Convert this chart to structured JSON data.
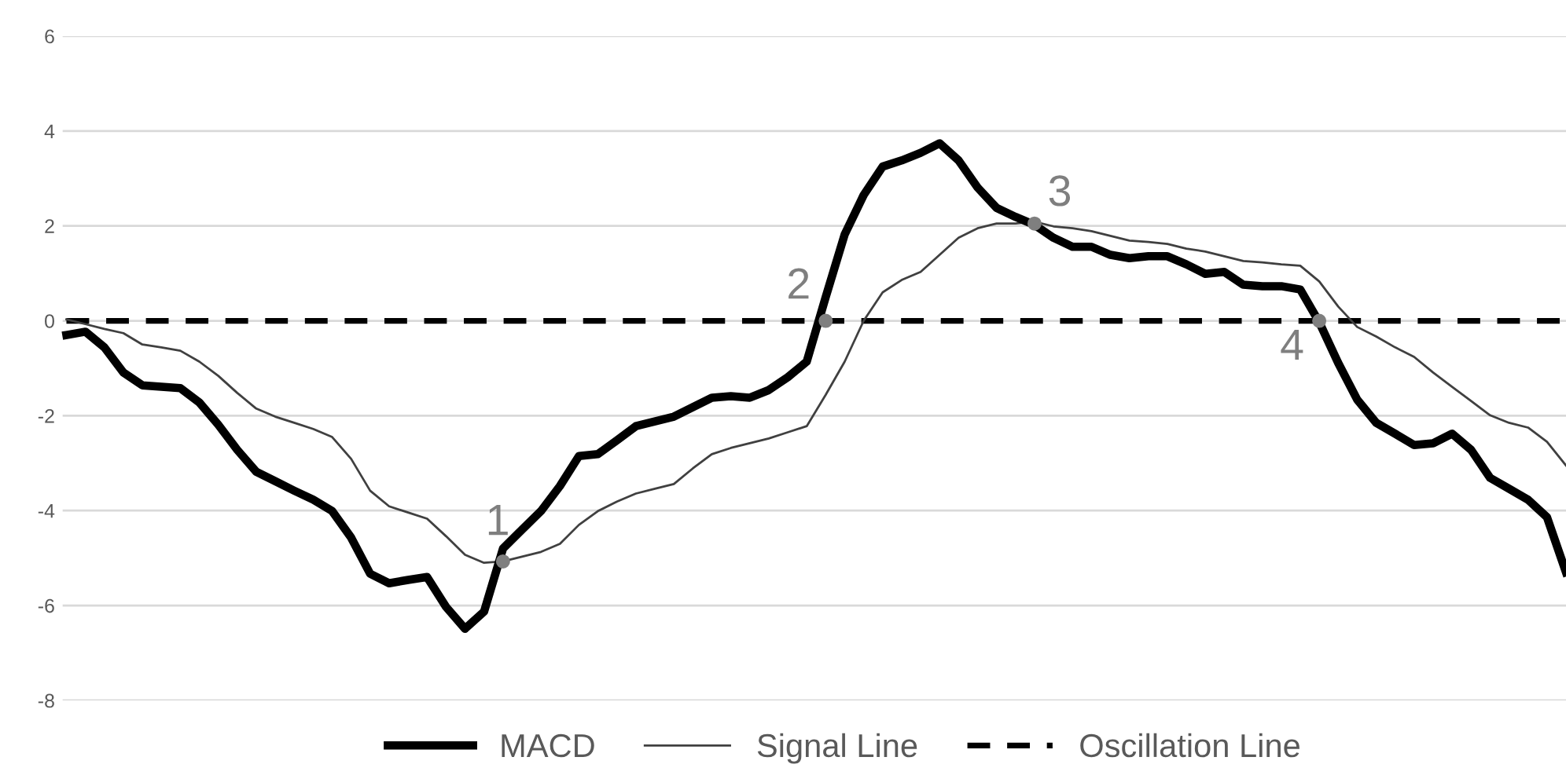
{
  "chart_data": {
    "type": "line",
    "categories": [
      null,
      null,
      null,
      null,
      null,
      null,
      null,
      null,
      null,
      null,
      null,
      null,
      null,
      null,
      null,
      null,
      null,
      null,
      null,
      null,
      null,
      null,
      null,
      null,
      null,
      null,
      null,
      null,
      null,
      null,
      null,
      null,
      null,
      null,
      null,
      null,
      null,
      null,
      null,
      null,
      null,
      null,
      null,
      null,
      null,
      null,
      null,
      null,
      null,
      null,
      null,
      null,
      null,
      null,
      null,
      null,
      null,
      null,
      null,
      null,
      null,
      null,
      null,
      null,
      null,
      null,
      null,
      null,
      null,
      null,
      null,
      null,
      null,
      null,
      null,
      null,
      null,
      null,
      null,
      null
    ],
    "series": [
      {
        "name": "MACD",
        "color": "#000000",
        "line_style": "solid",
        "values": [
          -0.3,
          -0.23,
          -0.56,
          -1.09,
          -1.36,
          -1.39,
          -1.42,
          -1.72,
          -2.19,
          -2.72,
          -3.18,
          -3.38,
          -3.58,
          -3.77,
          -4.01,
          -4.57,
          -5.33,
          -5.53,
          -5.46,
          -5.4,
          -6.03,
          -6.49,
          -6.13,
          -4.8,
          -4.4,
          -4.01,
          -3.48,
          -2.85,
          -2.81,
          -2.52,
          -2.22,
          -2.12,
          -2.02,
          -1.82,
          -1.62,
          -1.59,
          -1.62,
          -1.46,
          -1.19,
          -0.86,
          0.5,
          1.82,
          2.65,
          3.25,
          3.38,
          3.54,
          3.74,
          3.38,
          2.81,
          2.38,
          2.19,
          2.02,
          1.75,
          1.56,
          1.56,
          1.39,
          1.32,
          1.36,
          1.36,
          1.19,
          0.99,
          1.03,
          0.76,
          0.73,
          0.73,
          0.66,
          -0.03,
          -0.89,
          -1.66,
          -2.15,
          -2.38,
          -2.62,
          -2.58,
          -2.38,
          -2.72,
          -3.31,
          -3.54,
          -3.77,
          -4.14,
          -5.3
        ]
      },
      {
        "name": "Signal Line",
        "color": "#404040",
        "line_style": "solid",
        "values": [
          0.03,
          -0.07,
          -0.17,
          -0.26,
          -0.5,
          -0.56,
          -0.63,
          -0.86,
          -1.16,
          -1.52,
          -1.85,
          -2.02,
          -2.15,
          -2.28,
          -2.45,
          -2.91,
          -3.58,
          -3.91,
          -4.04,
          -4.17,
          -4.54,
          -4.93,
          -5.1,
          -5.07,
          -4.97,
          -4.87,
          -4.7,
          -4.3,
          -4.01,
          -3.81,
          -3.64,
          -3.54,
          -3.44,
          -3.11,
          -2.81,
          -2.68,
          -2.58,
          -2.48,
          -2.35,
          -2.22,
          -1.56,
          -0.86,
          0.0,
          0.6,
          0.86,
          1.03,
          1.39,
          1.75,
          1.95,
          2.05,
          2.05,
          2.09,
          1.99,
          1.95,
          1.89,
          1.79,
          1.69,
          1.66,
          1.62,
          1.52,
          1.46,
          1.36,
          1.26,
          1.23,
          1.19,
          1.16,
          0.83,
          0.3,
          -0.13,
          -0.33,
          -0.56,
          -0.76,
          -1.09,
          -1.39,
          -1.69,
          -1.99,
          -2.15,
          -2.25,
          -2.55,
          -3.05
        ]
      },
      {
        "name": "Oscillation Line",
        "color": "#000000",
        "line_style": "dashed",
        "values": [
          0,
          0,
          0,
          0,
          0,
          0,
          0,
          0,
          0,
          0,
          0,
          0,
          0,
          0,
          0,
          0,
          0,
          0,
          0,
          0,
          0,
          0,
          0,
          0,
          0,
          0,
          0,
          0,
          0,
          0,
          0,
          0,
          0,
          0,
          0,
          0,
          0,
          0,
          0,
          0,
          0,
          0,
          0,
          0,
          0,
          0,
          0,
          0,
          0,
          0,
          0,
          0,
          0,
          0,
          0,
          0,
          0,
          0,
          0,
          0,
          0,
          0,
          0,
          0,
          0,
          0,
          0,
          0,
          0,
          0,
          0,
          0,
          0,
          0,
          0,
          0,
          0,
          0,
          0,
          0
        ]
      },
      {
        "type": "scatter",
        "color": "#7f7f7f",
        "marker": "circle",
        "values": [
          null,
          null,
          null,
          null,
          null,
          null,
          null,
          null,
          null,
          null,
          null,
          null,
          null,
          null,
          null,
          null,
          null,
          null,
          null,
          null,
          null,
          null,
          null,
          -5.07,
          null,
          null,
          null,
          null,
          null,
          null,
          null,
          null,
          null,
          null,
          null,
          null,
          null,
          null,
          null,
          null,
          0,
          null,
          null,
          null,
          null,
          null,
          null,
          null,
          null,
          null,
          null,
          2.05,
          null,
          null,
          null,
          null,
          null,
          null,
          null,
          null,
          null,
          null,
          null,
          null,
          null,
          null,
          0,
          null,
          null,
          null,
          null,
          null,
          null,
          null,
          null,
          null,
          null,
          null,
          null,
          null
        ]
      }
    ],
    "annotations": [
      "1",
      "2",
      "3",
      "4"
    ],
    "ylim": [
      -8,
      6
    ],
    "yticks": [
      -8,
      -6,
      -4,
      -2,
      0,
      2,
      4,
      6
    ],
    "grid": "y",
    "legend": "bottom",
    "tick_labels": "y"
  }
}
